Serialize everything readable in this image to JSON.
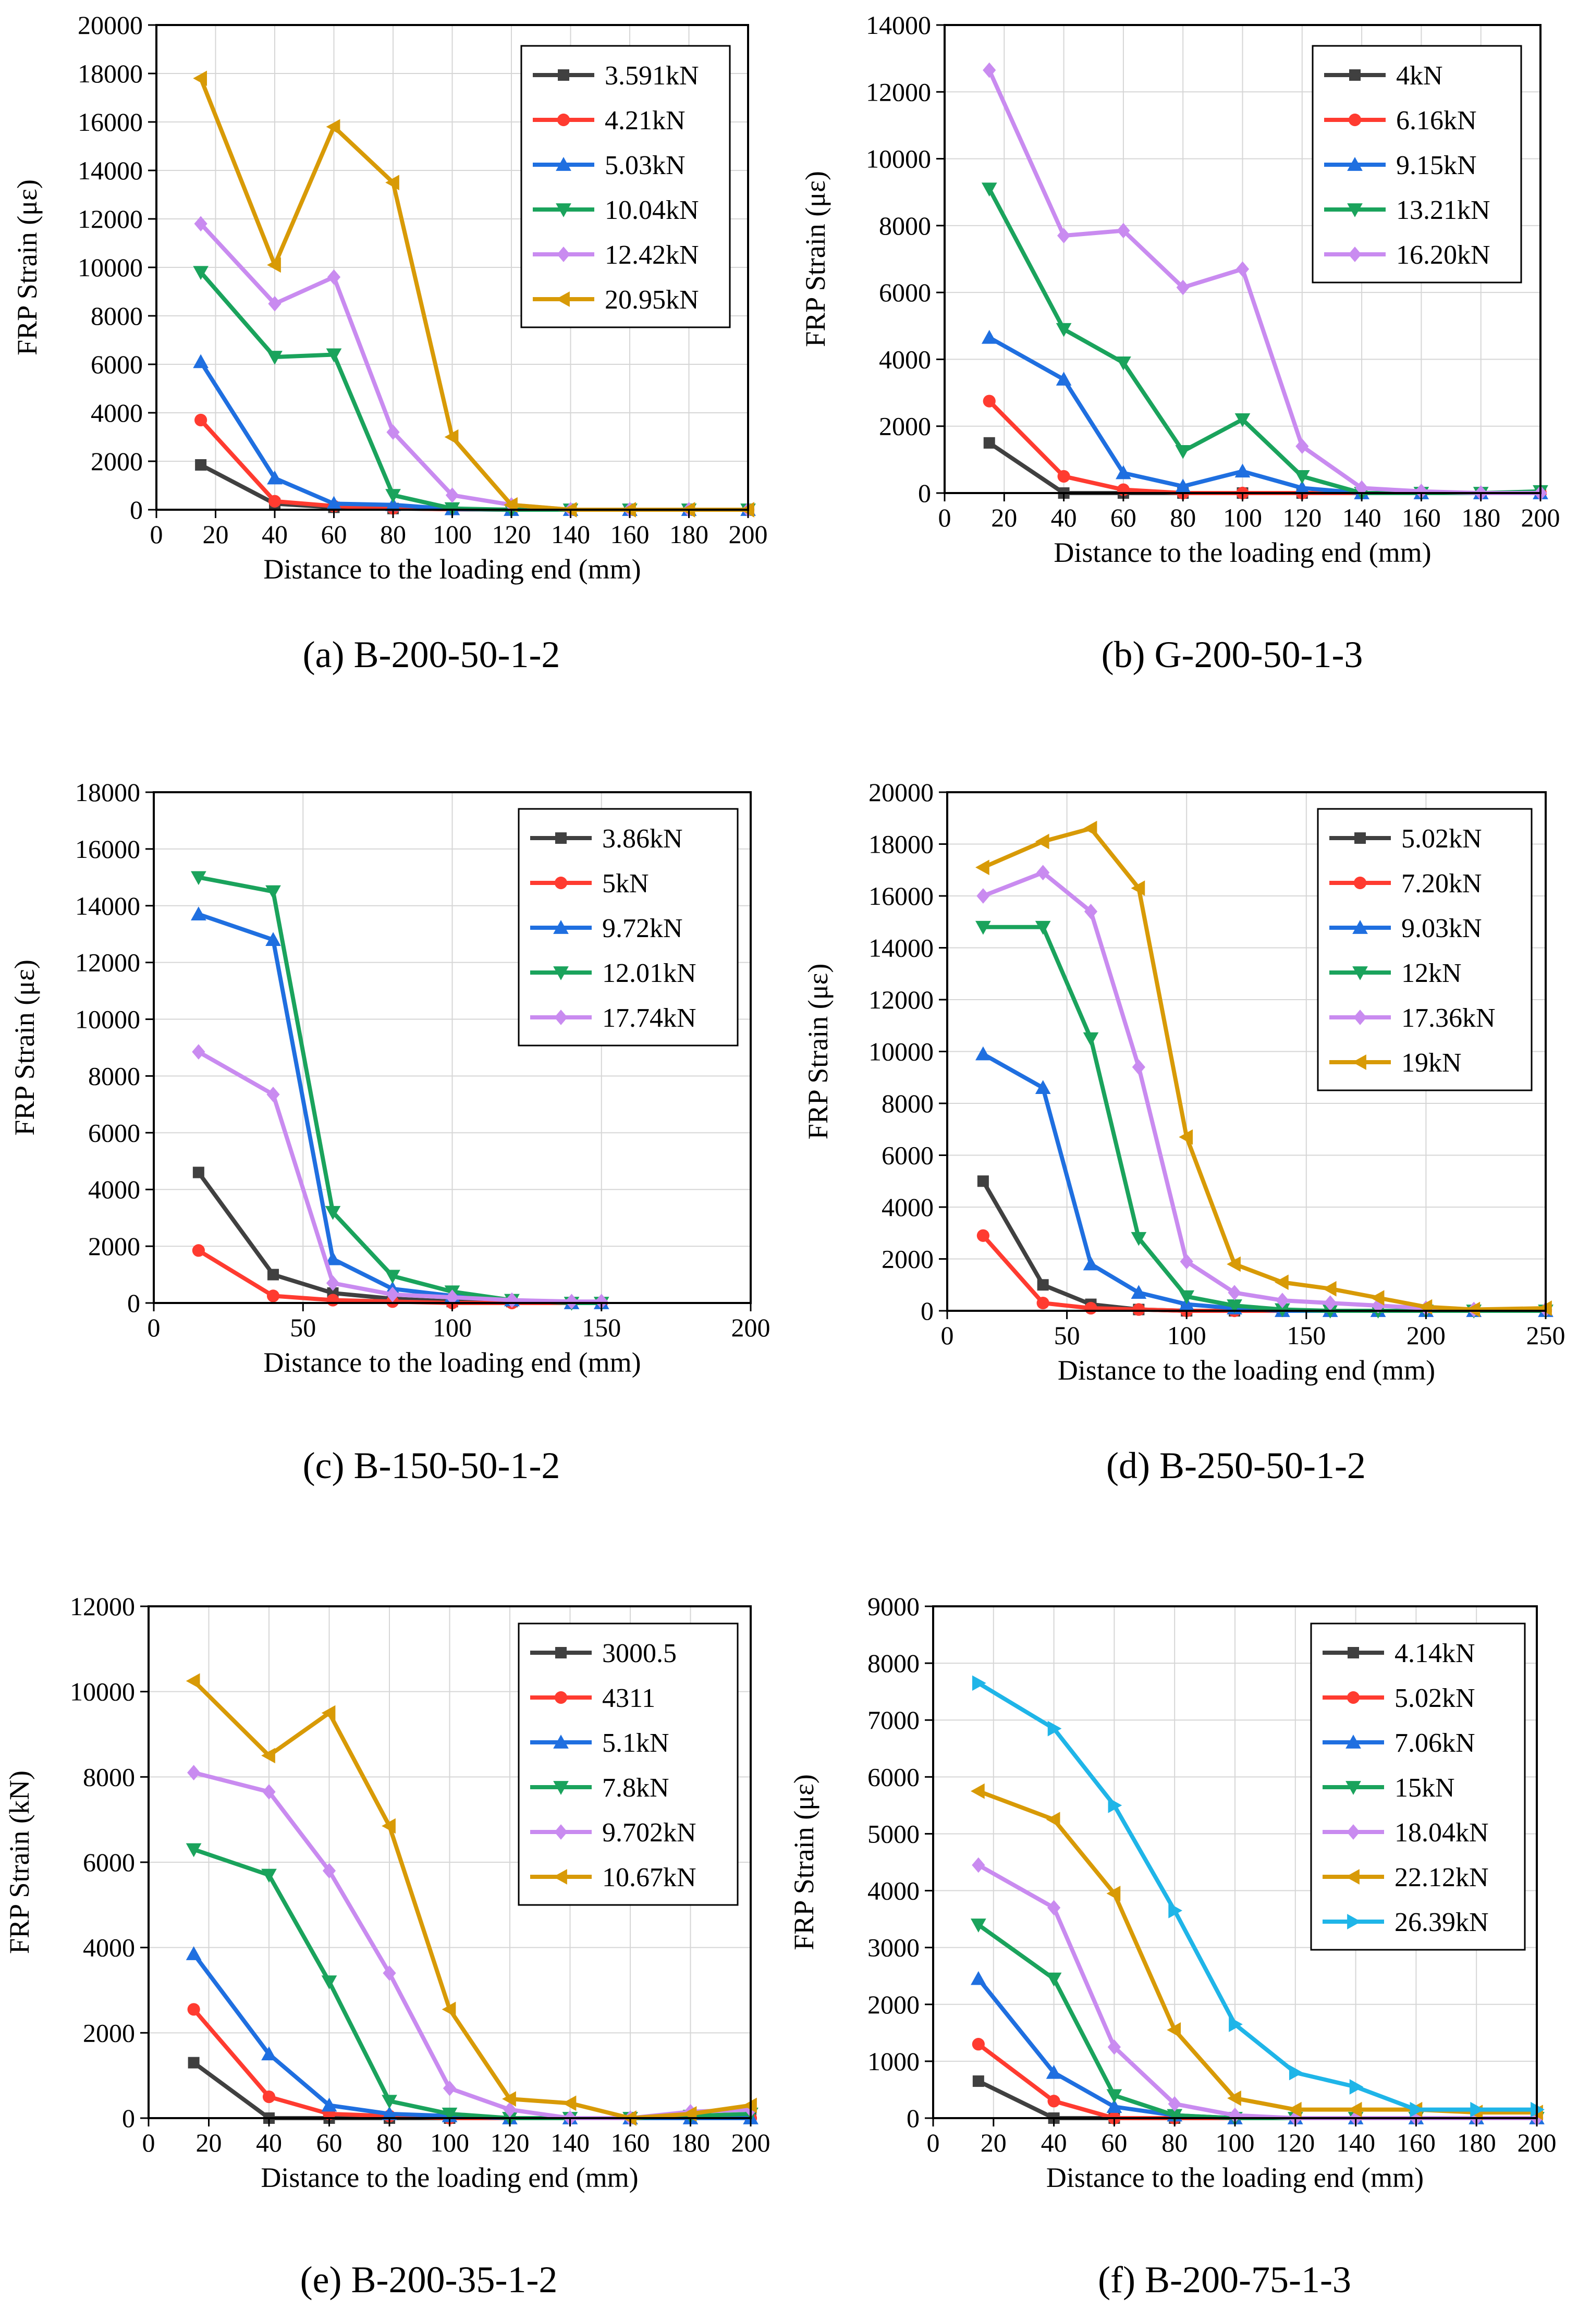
{
  "charts": [
    {
      "caption": "(a) B-200-50-1-2",
      "chart_data": {
        "type": "line",
        "xlabel": "Distance to the loading end (mm)",
        "ylabel": "FRP Strain (με)",
        "xlim": [
          0,
          200
        ],
        "ylim": [
          0,
          20000
        ],
        "xticks": [
          0,
          20,
          40,
          60,
          80,
          100,
          120,
          140,
          160,
          180,
          200
        ],
        "yticks": [
          0,
          2000,
          4000,
          6000,
          8000,
          10000,
          12000,
          14000,
          16000,
          18000,
          20000
        ],
        "grid": true,
        "legend": "top-right",
        "x": [
          15,
          40,
          60,
          80,
          100,
          120,
          140,
          160,
          180,
          200
        ],
        "series": [
          {
            "name": "3.591kN",
            "color": "#404040",
            "marker": "square",
            "values": [
              1850,
              250,
              100,
              50,
              20,
              0,
              0,
              0,
              0,
              0
            ]
          },
          {
            "name": "4.21kN",
            "color": "#ff3b30",
            "marker": "circle",
            "values": [
              3700,
              350,
              150,
              60,
              20,
              0,
              0,
              0,
              0,
              0
            ]
          },
          {
            "name": "5.03kN",
            "color": "#1f6fe0",
            "marker": "triangle-up",
            "values": [
              6100,
              1300,
              250,
              200,
              30,
              0,
              0,
              0,
              0,
              0
            ]
          },
          {
            "name": "10.04kN",
            "color": "#1aa35c",
            "marker": "triangle-down",
            "values": [
              9800,
              6300,
              6400,
              600,
              50,
              0,
              0,
              0,
              0,
              0
            ]
          },
          {
            "name": "12.42kN",
            "color": "#c98bf0",
            "marker": "diamond",
            "values": [
              11800,
              8500,
              9600,
              3200,
              600,
              200,
              0,
              0,
              0,
              0
            ]
          },
          {
            "name": "20.95kN",
            "color": "#d89a06",
            "marker": "triangle-left",
            "values": [
              17800,
              10100,
              15800,
              13500,
              3000,
              200,
              0,
              0,
              0,
              0
            ]
          }
        ]
      }
    },
    {
      "caption": "(b) G-200-50-1-3",
      "chart_data": {
        "type": "line",
        "xlabel": "Distance to the loading end (mm)",
        "ylabel": "FRP Strain (με)",
        "xlim": [
          0,
          200
        ],
        "ylim": [
          0,
          14000
        ],
        "xticks": [
          0,
          20,
          40,
          60,
          80,
          100,
          120,
          140,
          160,
          180,
          200
        ],
        "yticks": [
          0,
          2000,
          4000,
          6000,
          8000,
          10000,
          12000,
          14000
        ],
        "grid": true,
        "legend": "top-right",
        "x": [
          15,
          40,
          60,
          80,
          100,
          120,
          140,
          160,
          180,
          200
        ],
        "series": [
          {
            "name": "4kN",
            "color": "#404040",
            "marker": "square",
            "values": [
              1500,
              0,
              0,
              0,
              0,
              0,
              0,
              0,
              0,
              0
            ]
          },
          {
            "name": "6.16kN",
            "color": "#ff3b30",
            "marker": "circle",
            "values": [
              2750,
              500,
              100,
              0,
              0,
              0,
              0,
              0,
              0,
              0
            ]
          },
          {
            "name": "9.15kN",
            "color": "#1f6fe0",
            "marker": "triangle-up",
            "values": [
              4650,
              3400,
              600,
              200,
              650,
              150,
              0,
              0,
              0,
              0
            ]
          },
          {
            "name": "13.21kN",
            "color": "#1aa35c",
            "marker": "triangle-down",
            "values": [
              9100,
              4900,
              3900,
              1250,
              2200,
              500,
              0,
              0,
              0,
              50
            ]
          },
          {
            "name": "16.20kN",
            "color": "#c98bf0",
            "marker": "diamond",
            "values": [
              12650,
              7700,
              7850,
              6150,
              6700,
              1400,
              150,
              50,
              0,
              0
            ]
          }
        ]
      }
    },
    {
      "caption": "(c) B-150-50-1-2",
      "chart_data": {
        "type": "line",
        "xlabel": "Distance to the loading end (mm)",
        "ylabel": "FRP Strain (με)",
        "xlim": [
          0,
          200
        ],
        "ylim": [
          0,
          18000
        ],
        "xticks": [
          0,
          50,
          100,
          150,
          200
        ],
        "yticks": [
          0,
          2000,
          4000,
          6000,
          8000,
          10000,
          12000,
          14000,
          16000,
          18000
        ],
        "grid": true,
        "legend": "top-right",
        "x": [
          15,
          40,
          60,
          80,
          100,
          120,
          140,
          150
        ],
        "series": [
          {
            "name": "3.86kN",
            "color": "#404040",
            "marker": "square",
            "values": [
              4600,
              1000,
              350,
              150,
              50,
              50,
              0,
              0
            ]
          },
          {
            "name": "5kN",
            "color": "#ff3b30",
            "marker": "circle",
            "values": [
              1850,
              250,
              100,
              50,
              0,
              0,
              0,
              0
            ]
          },
          {
            "name": "9.72kN",
            "color": "#1f6fe0",
            "marker": "triangle-up",
            "values": [
              13700,
              12800,
              1550,
              500,
              250,
              100,
              0,
              0
            ]
          },
          {
            "name": "12.01kN",
            "color": "#1aa35c",
            "marker": "triangle-down",
            "values": [
              15000,
              14500,
              3200,
              950,
              400,
              100,
              0,
              0
            ]
          },
          {
            "name": "17.74kN",
            "color": "#c98bf0",
            "marker": "diamond",
            "values": [
              8850,
              7350,
              700,
              300,
              200,
              100,
              50,
              50
            ]
          }
        ]
      }
    },
    {
      "caption": "(d) B-250-50-1-2",
      "chart_data": {
        "type": "line",
        "xlabel": "Distance to the loading end (mm)",
        "ylabel": "FRP Strain (με)",
        "xlim": [
          0,
          250
        ],
        "ylim": [
          0,
          20000
        ],
        "xticks": [
          0,
          50,
          100,
          150,
          200,
          250
        ],
        "yticks": [
          0,
          2000,
          4000,
          6000,
          8000,
          10000,
          12000,
          14000,
          16000,
          18000,
          20000
        ],
        "grid": true,
        "legend": "top-right",
        "x": [
          15,
          40,
          60,
          80,
          100,
          120,
          140,
          160,
          180,
          200,
          220,
          250
        ],
        "series": [
          {
            "name": "5.02kN",
            "color": "#404040",
            "marker": "square",
            "values": [
              5000,
              1000,
              250,
              50,
              0,
              0,
              0,
              0,
              0,
              0,
              0,
              0
            ]
          },
          {
            "name": "7.20kN",
            "color": "#ff3b30",
            "marker": "circle",
            "values": [
              2900,
              300,
              100,
              50,
              0,
              0,
              0,
              0,
              0,
              0,
              0,
              0
            ]
          },
          {
            "name": "9.03kN",
            "color": "#1f6fe0",
            "marker": "triangle-up",
            "values": [
              9900,
              8600,
              1800,
              700,
              250,
              100,
              0,
              0,
              0,
              0,
              0,
              0
            ]
          },
          {
            "name": "12kN",
            "color": "#1aa35c",
            "marker": "triangle-down",
            "values": [
              14800,
              14800,
              10500,
              2800,
              550,
              200,
              50,
              0,
              0,
              0,
              0,
              0
            ]
          },
          {
            "name": "17.36kN",
            "color": "#c98bf0",
            "marker": "diamond",
            "values": [
              16000,
              16900,
              15400,
              9400,
              1900,
              700,
              400,
              300,
              200,
              100,
              50,
              50
            ]
          },
          {
            "name": "19kN",
            "color": "#d89a06",
            "marker": "triangle-left",
            "values": [
              17100,
              18100,
              18600,
              16300,
              6700,
              1800,
              1100,
              850,
              500,
              150,
              50,
              100
            ]
          }
        ]
      }
    },
    {
      "caption": "(e) B-200-35-1-2",
      "chart_data": {
        "type": "line",
        "xlabel": "Distance to the loading end (mm)",
        "ylabel": "FRP Strain (kN)",
        "xlim": [
          0,
          200
        ],
        "ylim": [
          0,
          12000
        ],
        "xticks": [
          0,
          20,
          40,
          60,
          80,
          100,
          120,
          140,
          160,
          180,
          200
        ],
        "yticks": [
          0,
          2000,
          4000,
          6000,
          8000,
          10000,
          12000
        ],
        "grid": true,
        "legend": "top-right",
        "x": [
          15,
          40,
          60,
          80,
          100,
          120,
          140,
          160,
          180,
          200
        ],
        "series": [
          {
            "name": "3000.5",
            "color": "#404040",
            "marker": "square",
            "values": [
              1300,
              0,
              0,
              0,
              0,
              0,
              0,
              0,
              0,
              0
            ]
          },
          {
            "name": "4311",
            "color": "#ff3b30",
            "marker": "circle",
            "values": [
              2550,
              500,
              100,
              50,
              0,
              0,
              0,
              0,
              0,
              0
            ]
          },
          {
            "name": "5.1kN",
            "color": "#1f6fe0",
            "marker": "triangle-up",
            "values": [
              3850,
              1500,
              300,
              100,
              50,
              0,
              0,
              0,
              0,
              0
            ]
          },
          {
            "name": "7.8kN",
            "color": "#1aa35c",
            "marker": "triangle-down",
            "values": [
              6300,
              5700,
              3200,
              400,
              100,
              0,
              0,
              0,
              50,
              100
            ]
          },
          {
            "name": "9.702kN",
            "color": "#c98bf0",
            "marker": "diamond",
            "values": [
              8100,
              7650,
              5800,
              3400,
              700,
              200,
              0,
              0,
              150,
              200
            ]
          },
          {
            "name": "10.67kN",
            "color": "#d89a06",
            "marker": "triangle-left",
            "values": [
              10250,
              8500,
              9500,
              6850,
              2550,
              450,
              350,
              0,
              100,
              300
            ]
          }
        ]
      }
    },
    {
      "caption": "(f) B-200-75-1-3",
      "chart_data": {
        "type": "line",
        "xlabel": "Distance to the loading end (mm)",
        "ylabel": "FRP Strain (με)",
        "xlim": [
          0,
          200
        ],
        "ylim": [
          0,
          9000
        ],
        "xticks": [
          0,
          20,
          40,
          60,
          80,
          100,
          120,
          140,
          160,
          180,
          200
        ],
        "yticks": [
          0,
          1000,
          2000,
          3000,
          4000,
          5000,
          6000,
          7000,
          8000,
          9000
        ],
        "grid": true,
        "legend": "top-right",
        "x": [
          15,
          40,
          60,
          80,
          100,
          120,
          140,
          160,
          180,
          200
        ],
        "series": [
          {
            "name": "4.14kN",
            "color": "#404040",
            "marker": "square",
            "values": [
              650,
              0,
              0,
              0,
              0,
              0,
              0,
              0,
              0,
              0
            ]
          },
          {
            "name": "5.02kN",
            "color": "#ff3b30",
            "marker": "circle",
            "values": [
              1300,
              300,
              0,
              0,
              0,
              0,
              0,
              0,
              0,
              0
            ]
          },
          {
            "name": "7.06kN",
            "color": "#1f6fe0",
            "marker": "triangle-up",
            "values": [
              2450,
              800,
              200,
              50,
              0,
              0,
              0,
              0,
              0,
              0
            ]
          },
          {
            "name": "15kN",
            "color": "#1aa35c",
            "marker": "triangle-down",
            "values": [
              3400,
              2450,
              400,
              50,
              0,
              0,
              0,
              0,
              0,
              0
            ]
          },
          {
            "name": "18.04kN",
            "color": "#c98bf0",
            "marker": "diamond",
            "values": [
              4450,
              3700,
              1250,
              250,
              50,
              0,
              0,
              0,
              0,
              0
            ]
          },
          {
            "name": "22.12kN",
            "color": "#d89a06",
            "marker": "triangle-left",
            "values": [
              5750,
              5250,
              3950,
              1550,
              350,
              150,
              150,
              150,
              100,
              100
            ]
          },
          {
            "name": "26.39kN",
            "color": "#1fb5e8",
            "marker": "triangle-right",
            "values": [
              7650,
              6850,
              5500,
              3650,
              1650,
              800,
              550,
              150,
              150,
              150
            ]
          }
        ]
      }
    }
  ]
}
